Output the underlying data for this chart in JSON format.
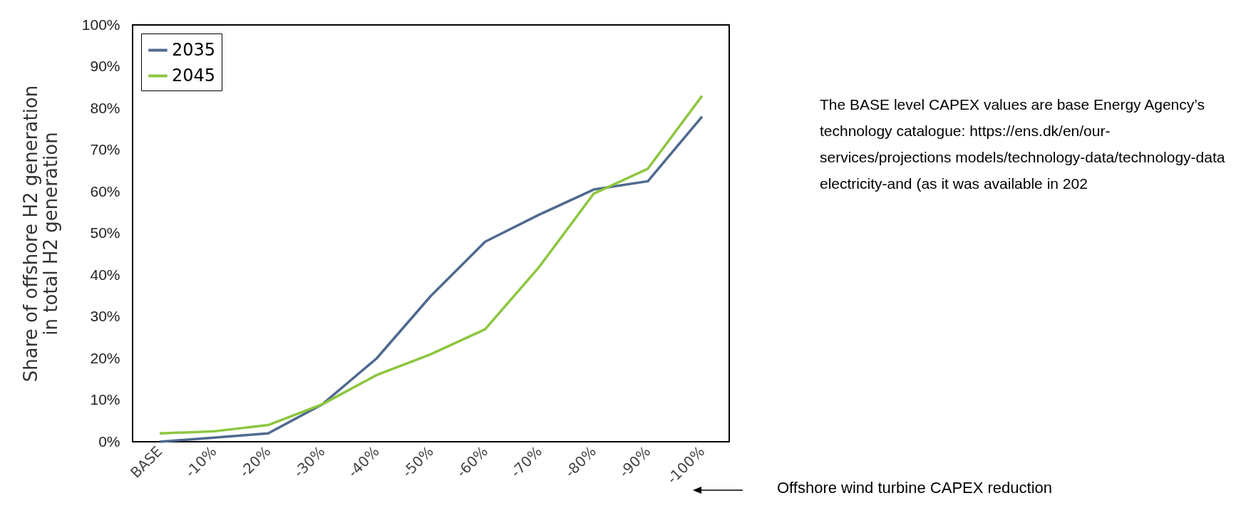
{
  "chart_data": {
    "type": "line",
    "ylabel": "Share of offshore H2 generation\nin total H2 generation",
    "xlabel": "Offshore wind turbine CAPEX reduction",
    "categories": [
      "BASE",
      "-10%",
      "-20%",
      "-30%",
      "-40%",
      "-50%",
      "-60%",
      "-70%",
      "-80%",
      "-90%",
      "-100%"
    ],
    "series": [
      {
        "name": "2035",
        "color": "#4f6a8f",
        "values": [
          0,
          1,
          2,
          9,
          20,
          35,
          48,
          54.5,
          60.5,
          62.5,
          78
        ]
      },
      {
        "name": "2045",
        "color": "#8cc63f",
        "values": [
          2,
          2.5,
          4,
          9,
          16,
          21,
          27,
          42,
          59.5,
          65.5,
          83
        ]
      }
    ],
    "ylim": [
      0,
      100
    ],
    "yticks": [
      {
        "value": 0,
        "label": "0%"
      },
      {
        "value": 10,
        "label": "10%"
      },
      {
        "value": 20,
        "label": "20%"
      },
      {
        "value": 30,
        "label": "30%"
      },
      {
        "value": 40,
        "label": "40%"
      },
      {
        "value": 50,
        "label": "50%"
      },
      {
        "value": 60,
        "label": "60%"
      },
      {
        "value": 70,
        "label": "70%"
      },
      {
        "value": 80,
        "label": "80%"
      },
      {
        "value": 90,
        "label": "90%"
      },
      {
        "value": 100,
        "label": "100%"
      }
    ],
    "annotations": [
      "The BASE level CAPEX values are base Energy Agency’s technology catalogue: https://ens.dk/en/our-services/projections models/technology-data/technology-data electricity-and (as it was available in 202"
    ],
    "grid": false,
    "legend": "top left",
    "marker": "none",
    "line_style": "solid"
  }
}
